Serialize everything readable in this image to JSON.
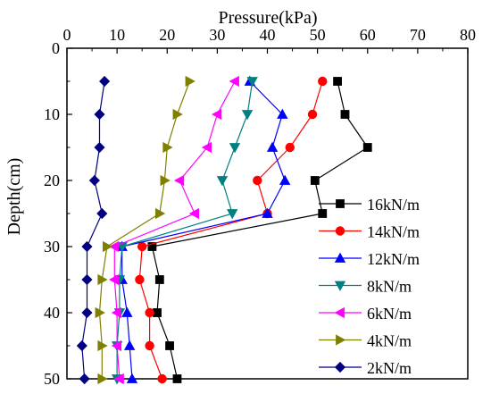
{
  "chart_data": {
    "type": "line",
    "xlabel": "Pressure(kPa)",
    "ylabel": "Depth(cm)",
    "xlim": [
      0,
      80
    ],
    "ylim": [
      0,
      50
    ],
    "x_ticks": [
      "0",
      "10",
      "20",
      "30",
      "40",
      "50",
      "60",
      "70",
      "80"
    ],
    "y_ticks": [
      "0",
      "10",
      "20",
      "30",
      "40",
      "50"
    ],
    "x_axis_position": "top",
    "y_axis_inverted": true,
    "grid": false,
    "legend_position": "right",
    "depths": [
      5,
      10,
      15,
      20,
      25,
      30,
      35,
      40,
      45,
      50
    ],
    "series": [
      {
        "name": "16kN/m",
        "color": "#000000",
        "marker": "square",
        "values": [
          54,
          55.5,
          60,
          49.5,
          51,
          17,
          18.5,
          18,
          20.5,
          22
        ]
      },
      {
        "name": "14kN/m",
        "color": "#ff0000",
        "marker": "circle",
        "values": [
          51,
          49,
          44.5,
          38,
          40,
          15,
          14.5,
          16.5,
          16.5,
          19
        ]
      },
      {
        "name": "12kN/m",
        "color": "#0000ff",
        "marker": "triangle-up",
        "values": [
          36.5,
          43,
          41,
          43.5,
          40,
          11,
          11,
          12,
          12.5,
          13
        ]
      },
      {
        "name": "8kN/m",
        "color": "#008080",
        "marker": "triangle-down",
        "values": [
          37,
          36,
          33.5,
          31,
          33,
          11,
          10.5,
          10.5,
          10,
          10
        ]
      },
      {
        "name": "6kN/m",
        "color": "#ff00ff",
        "marker": "triangle-left",
        "values": [
          33.5,
          30,
          28,
          22.5,
          25.5,
          9.5,
          9.5,
          10,
          10,
          10.5
        ]
      },
      {
        "name": "4kN/m",
        "color": "#808000",
        "marker": "triangle-right",
        "values": [
          24.5,
          22,
          20,
          19.5,
          18.5,
          8,
          7,
          6.5,
          7,
          7
        ]
      },
      {
        "name": "2kN/m",
        "color": "#000080",
        "marker": "diamond",
        "values": [
          7.5,
          6.5,
          6.5,
          5.5,
          7,
          4,
          4,
          4,
          3,
          3.5
        ]
      }
    ]
  }
}
